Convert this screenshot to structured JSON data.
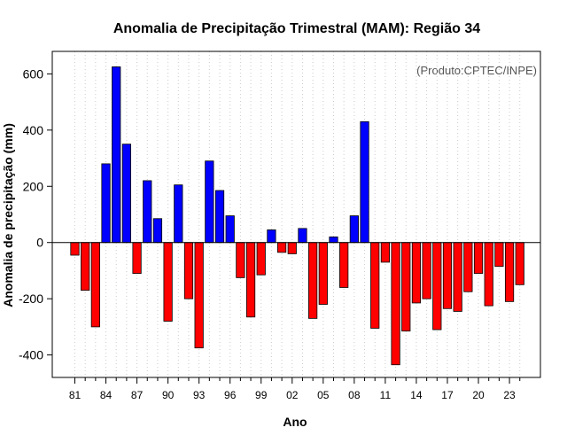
{
  "chart_data": {
    "type": "bar",
    "title": "Anomalia de Precipitação Trimestral (MAM): Região 34",
    "xlabel": "Ano",
    "ylabel": "Anomalia de precipitação (mm)",
    "credit": "(Produto:CPTEC/INPE)",
    "ylim": [
      -480,
      680
    ],
    "yticks": [
      -400,
      -200,
      0,
      200,
      400,
      600
    ],
    "ytick_labels": [
      "-400",
      "-200",
      "0",
      "200",
      "400",
      "600"
    ],
    "xtick_labels": [
      "81",
      "84",
      "87",
      "90",
      "93",
      "96",
      "99",
      "02",
      "05",
      "08",
      "11",
      "14",
      "17",
      "20",
      "23"
    ],
    "xtick_step": 3,
    "grid": "vertical-dotted",
    "years": [
      "1981",
      "1982",
      "1983",
      "1984",
      "1985",
      "1986",
      "1987",
      "1988",
      "1989",
      "1990",
      "1991",
      "1992",
      "1993",
      "1994",
      "1995",
      "1996",
      "1997",
      "1998",
      "1999",
      "2000",
      "2001",
      "2002",
      "2003",
      "2004",
      "2005",
      "2006",
      "2007",
      "2008",
      "2009",
      "2010",
      "2011",
      "2012",
      "2013",
      "2014",
      "2015",
      "2016",
      "2017",
      "2018",
      "2019",
      "2020",
      "2021",
      "2022",
      "2023",
      "2024"
    ],
    "values": [
      -45,
      -170,
      -300,
      280,
      625,
      350,
      -110,
      220,
      85,
      -280,
      205,
      -200,
      -375,
      290,
      185,
      95,
      -125,
      -265,
      -115,
      45,
      -35,
      -40,
      50,
      -270,
      -220,
      20,
      -160,
      95,
      430,
      -305,
      -70,
      -435,
      -315,
      -215,
      -200,
      -310,
      -235,
      -245,
      -175,
      -110,
      -225,
      -85,
      -210,
      -150
    ],
    "colors": {
      "positive": "#0000ff",
      "negative": "#ff0000",
      "frame": "#000000",
      "grid": "#cccccc",
      "zero_line": "#000000"
    }
  }
}
